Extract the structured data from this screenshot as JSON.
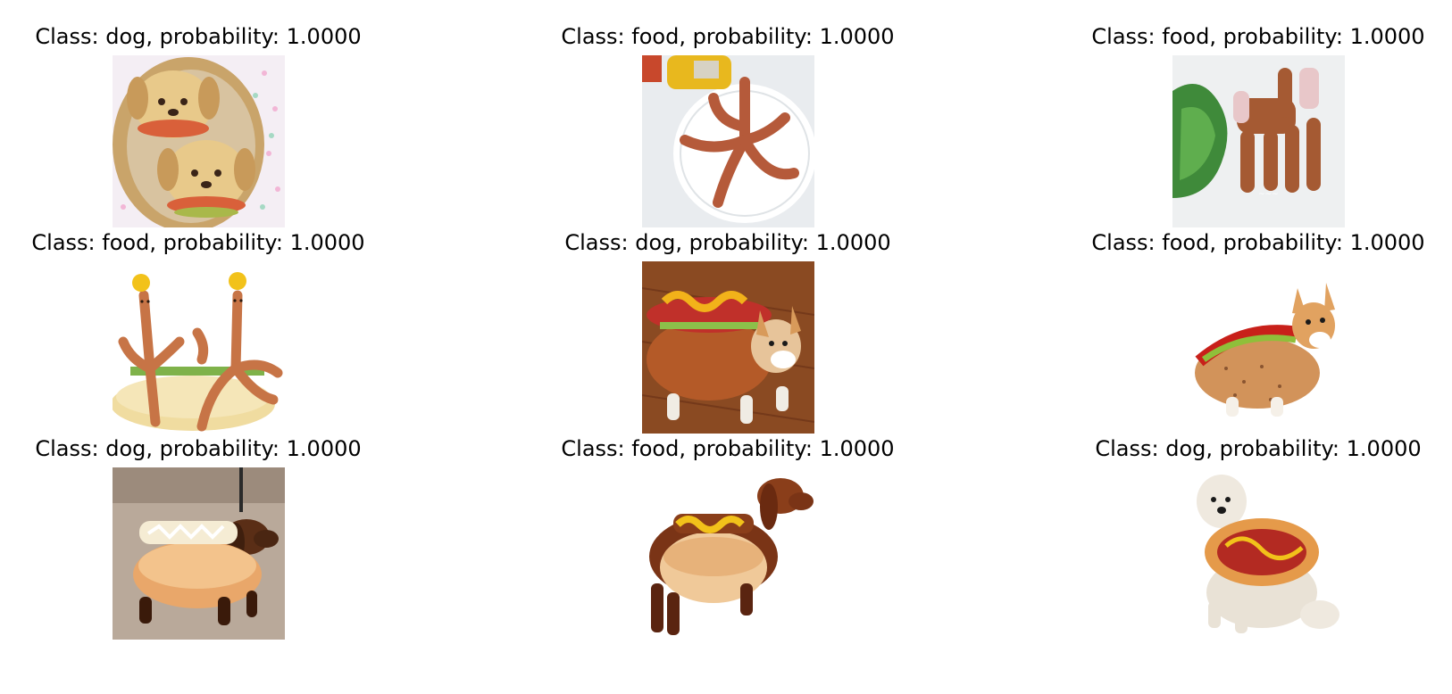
{
  "panels": [
    {
      "title": "Class: dog, probability: 1.0000",
      "image": "bread-puppy-buns-in-basket"
    },
    {
      "title": "Class: food, probability: 1.0000",
      "image": "hotdog-octopus-on-plate"
    },
    {
      "title": "Class: food, probability: 1.0000",
      "image": "sausage-elephant-with-lettuce"
    },
    {
      "title": "Class: food, probability: 1.0000",
      "image": "sausage-octopus-figures-on-bun"
    },
    {
      "title": "Class: dog, probability: 1.0000",
      "image": "corgi-in-hotdog-costume-on-wood-floor"
    },
    {
      "title": "Class: food, probability: 1.0000",
      "image": "corgi-in-hotdog-costume-white-background"
    },
    {
      "title": "Class: dog, probability: 1.0000",
      "image": "dachshund-in-hotdog-costume-on-street"
    },
    {
      "title": "Class: food, probability: 1.0000",
      "image": "dachshund-in-hotdog-bun-costume"
    },
    {
      "title": "Class: dog, probability: 1.0000",
      "image": "white-dog-in-hotdog-costume"
    }
  ]
}
